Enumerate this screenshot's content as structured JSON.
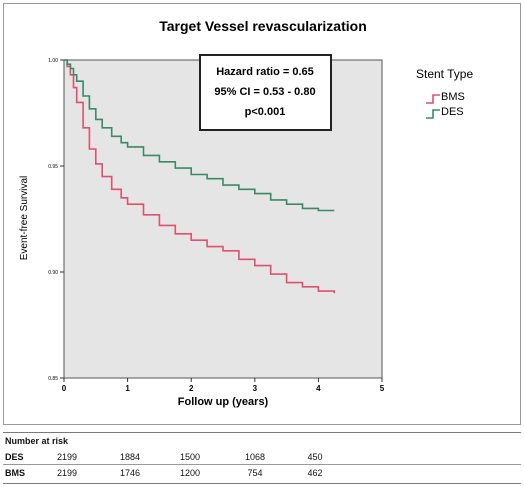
{
  "chart_data": {
    "type": "line",
    "title": "Target Vessel revascularization",
    "xlabel": "Follow up (years)",
    "ylabel": "Event-free Survival",
    "xlim": [
      0,
      5
    ],
    "ylim": [
      0.85,
      1.0
    ],
    "xticks": [
      "0",
      "1",
      "2",
      "3",
      "4",
      "5"
    ],
    "yticks": [
      "0.85",
      "0.90",
      "0.95",
      "1.00"
    ],
    "grid": false,
    "legend": {
      "title": "Stent Type",
      "position": "right"
    },
    "annotation": {
      "line1": "Hazard ratio = 0.65",
      "line2": "95% CI = 0.53 - 0.80",
      "line3": "p<0.001"
    },
    "series": [
      {
        "name": "BMS",
        "color": "#e0506f",
        "x": [
          0,
          0.05,
          0.1,
          0.15,
          0.2,
          0.3,
          0.4,
          0.5,
          0.6,
          0.75,
          0.9,
          1.0,
          1.25,
          1.5,
          1.75,
          2.0,
          2.25,
          2.5,
          2.75,
          3.0,
          3.25,
          3.5,
          3.75,
          4.0,
          4.25
        ],
        "y": [
          1.0,
          0.997,
          0.993,
          0.987,
          0.98,
          0.968,
          0.958,
          0.951,
          0.945,
          0.939,
          0.935,
          0.932,
          0.927,
          0.922,
          0.918,
          0.915,
          0.912,
          0.91,
          0.906,
          0.903,
          0.899,
          0.895,
          0.893,
          0.891,
          0.89
        ]
      },
      {
        "name": "DES",
        "color": "#3a8a6a",
        "x": [
          0,
          0.05,
          0.1,
          0.15,
          0.2,
          0.3,
          0.4,
          0.5,
          0.6,
          0.75,
          0.9,
          1.0,
          1.25,
          1.5,
          1.75,
          2.0,
          2.25,
          2.5,
          2.75,
          3.0,
          3.25,
          3.5,
          3.75,
          4.0,
          4.25
        ],
        "y": [
          1.0,
          0.998,
          0.996,
          0.993,
          0.99,
          0.983,
          0.977,
          0.972,
          0.968,
          0.964,
          0.961,
          0.959,
          0.955,
          0.952,
          0.949,
          0.946,
          0.944,
          0.941,
          0.939,
          0.937,
          0.934,
          0.932,
          0.93,
          0.929,
          0.929
        ]
      }
    ]
  },
  "risk_table": {
    "title": "Number at risk",
    "rows": [
      {
        "label": "DES",
        "values": [
          "2199",
          "1884",
          "1500",
          "1068",
          "450"
        ]
      },
      {
        "label": "BMS",
        "values": [
          "2199",
          "1746",
          "1200",
          "754",
          "462"
        ]
      }
    ]
  }
}
